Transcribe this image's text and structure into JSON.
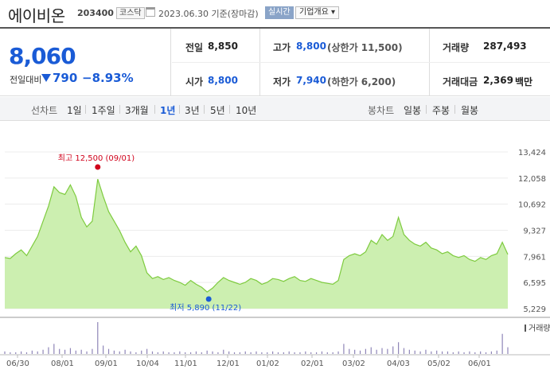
{
  "header": {
    "name": "에이비온",
    "code": "203400",
    "market": "코스닥",
    "date": "2023.06.30 기준(장마감)",
    "realtime_label": "실시간",
    "company_label": "기업개요 ▾"
  },
  "summary": {
    "price": "8,060",
    "change_label": "전일대비",
    "change_value": "790",
    "change_pct": "−8.93%",
    "prev_label": "전일",
    "prev_value": "8,850",
    "high_label": "고가",
    "high_value": "8,800",
    "high_sub": "(상한가 11,500)",
    "volume_label": "거래량",
    "volume_value": "287,493",
    "open_label": "시가",
    "open_value": "8,800",
    "low_label": "저가",
    "low_value": "7,940",
    "low_sub": "(하한가 6,200)",
    "amount_label": "거래대금",
    "amount_value": "2,369",
    "amount_unit": "백만"
  },
  "tabs": {
    "line_label": "선차트",
    "periods": [
      "1일",
      "1주일",
      "3개월",
      "1년",
      "3년",
      "5년",
      "10년"
    ],
    "active_period": "1년",
    "candle_label": "봉차트",
    "candles": [
      "일봉",
      "주봉",
      "월봉"
    ]
  },
  "colors": {
    "accent": "#1a5bd6",
    "down": "#1a5bd6",
    "high": "#d0021b",
    "area_fill": "#ccefb0",
    "area_line": "#7ecb3f"
  },
  "chart_data": {
    "type": "area",
    "y_ticks": [
      "13,424",
      "12,058",
      "10,692",
      "9,327",
      "7,961",
      "6,595",
      "5,229"
    ],
    "ylim": [
      5229,
      13424
    ],
    "x_ticks": [
      "06/30",
      "08/01",
      "09/01",
      "10/04",
      "11/01",
      "12/01",
      "01/02",
      "02/01",
      "03/02",
      "04/03",
      "05/02",
      "06/01"
    ],
    "high_annotation": "최고 12,500 (09/01)",
    "low_annotation": "최저 5,890 (11/22)",
    "volume_label": "거래량",
    "values": [
      7900,
      7850,
      8100,
      8300,
      8000,
      8500,
      9000,
      9800,
      10600,
      11600,
      11300,
      11200,
      11700,
      11100,
      10000,
      9500,
      9800,
      12000,
      11100,
      10300,
      9800,
      9300,
      8700,
      8200,
      8500,
      8000,
      7100,
      6800,
      6900,
      6750,
      6850,
      6700,
      6600,
      6450,
      6700,
      6500,
      6350,
      6100,
      6300,
      6600,
      6850,
      6700,
      6600,
      6500,
      6600,
      6800,
      6700,
      6500,
      6600,
      6800,
      6750,
      6650,
      6800,
      6900,
      6700,
      6650,
      6800,
      6700,
      6600,
      6550,
      6500,
      6700,
      7800,
      8000,
      8100,
      8000,
      8200,
      8800,
      8600,
      9100,
      8800,
      9000,
      10000,
      9100,
      8800,
      8600,
      8500,
      8700,
      8400,
      8300,
      8100,
      8200,
      8000,
      7900,
      8000,
      7800,
      7700,
      7900,
      7800,
      8000,
      8100,
      8700,
      8060
    ],
    "volumes": [
      3,
      2,
      2,
      3,
      2,
      4,
      3,
      5,
      8,
      12,
      6,
      5,
      7,
      4,
      5,
      3,
      6,
      38,
      10,
      6,
      4,
      3,
      5,
      3,
      2,
      4,
      6,
      3,
      2,
      3,
      2,
      2,
      3,
      2,
      2,
      3,
      2,
      4,
      3,
      2,
      5,
      3,
      2,
      2,
      3,
      2,
      3,
      2,
      2,
      3,
      2,
      2,
      3,
      2,
      2,
      3,
      2,
      2,
      3,
      2,
      2,
      3,
      12,
      6,
      5,
      4,
      6,
      8,
      5,
      7,
      6,
      9,
      14,
      7,
      5,
      4,
      3,
      5,
      3,
      4,
      3,
      3,
      2,
      3,
      2,
      3,
      2,
      3,
      2,
      3,
      4,
      24,
      8
    ]
  }
}
